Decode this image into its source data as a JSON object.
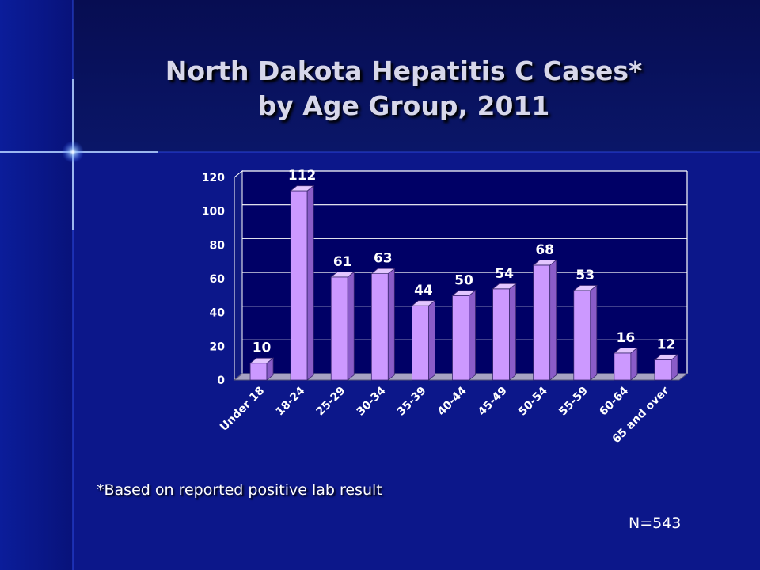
{
  "title_line1": "North Dakota Hepatitis C Cases*",
  "title_line2": "by Age Group, 2011",
  "footnote": "*Based on reported positive lab result",
  "n_count": "N=543",
  "colors": {
    "background": "#0a1478",
    "bar_front": "#cc99ff",
    "bar_side": "#8a5cc8",
    "bar_top": "#e3c6ff",
    "floor": "#a7a3c3",
    "plot_area": "#000066",
    "text": "#ffffff"
  },
  "chart_data": {
    "type": "bar",
    "title": "North Dakota Hepatitis C Cases* by Age Group, 2011",
    "categories": [
      "Under 18",
      "18-24",
      "25-29",
      "30-34",
      "35-39",
      "40-44",
      "45-49",
      "50-54",
      "55-59",
      "60-64",
      "65 and over"
    ],
    "values": [
      10,
      112,
      61,
      63,
      44,
      50,
      54,
      68,
      53,
      16,
      12
    ],
    "data_labels": [
      "10",
      "112",
      "61",
      "63",
      "44",
      "50",
      "54",
      "68",
      "53",
      "16",
      "12"
    ],
    "yticks": [
      0,
      20,
      40,
      60,
      80,
      100,
      120
    ],
    "ylim": [
      0,
      120
    ],
    "grid": true,
    "legend": "none",
    "xlabel": "",
    "ylabel": ""
  }
}
